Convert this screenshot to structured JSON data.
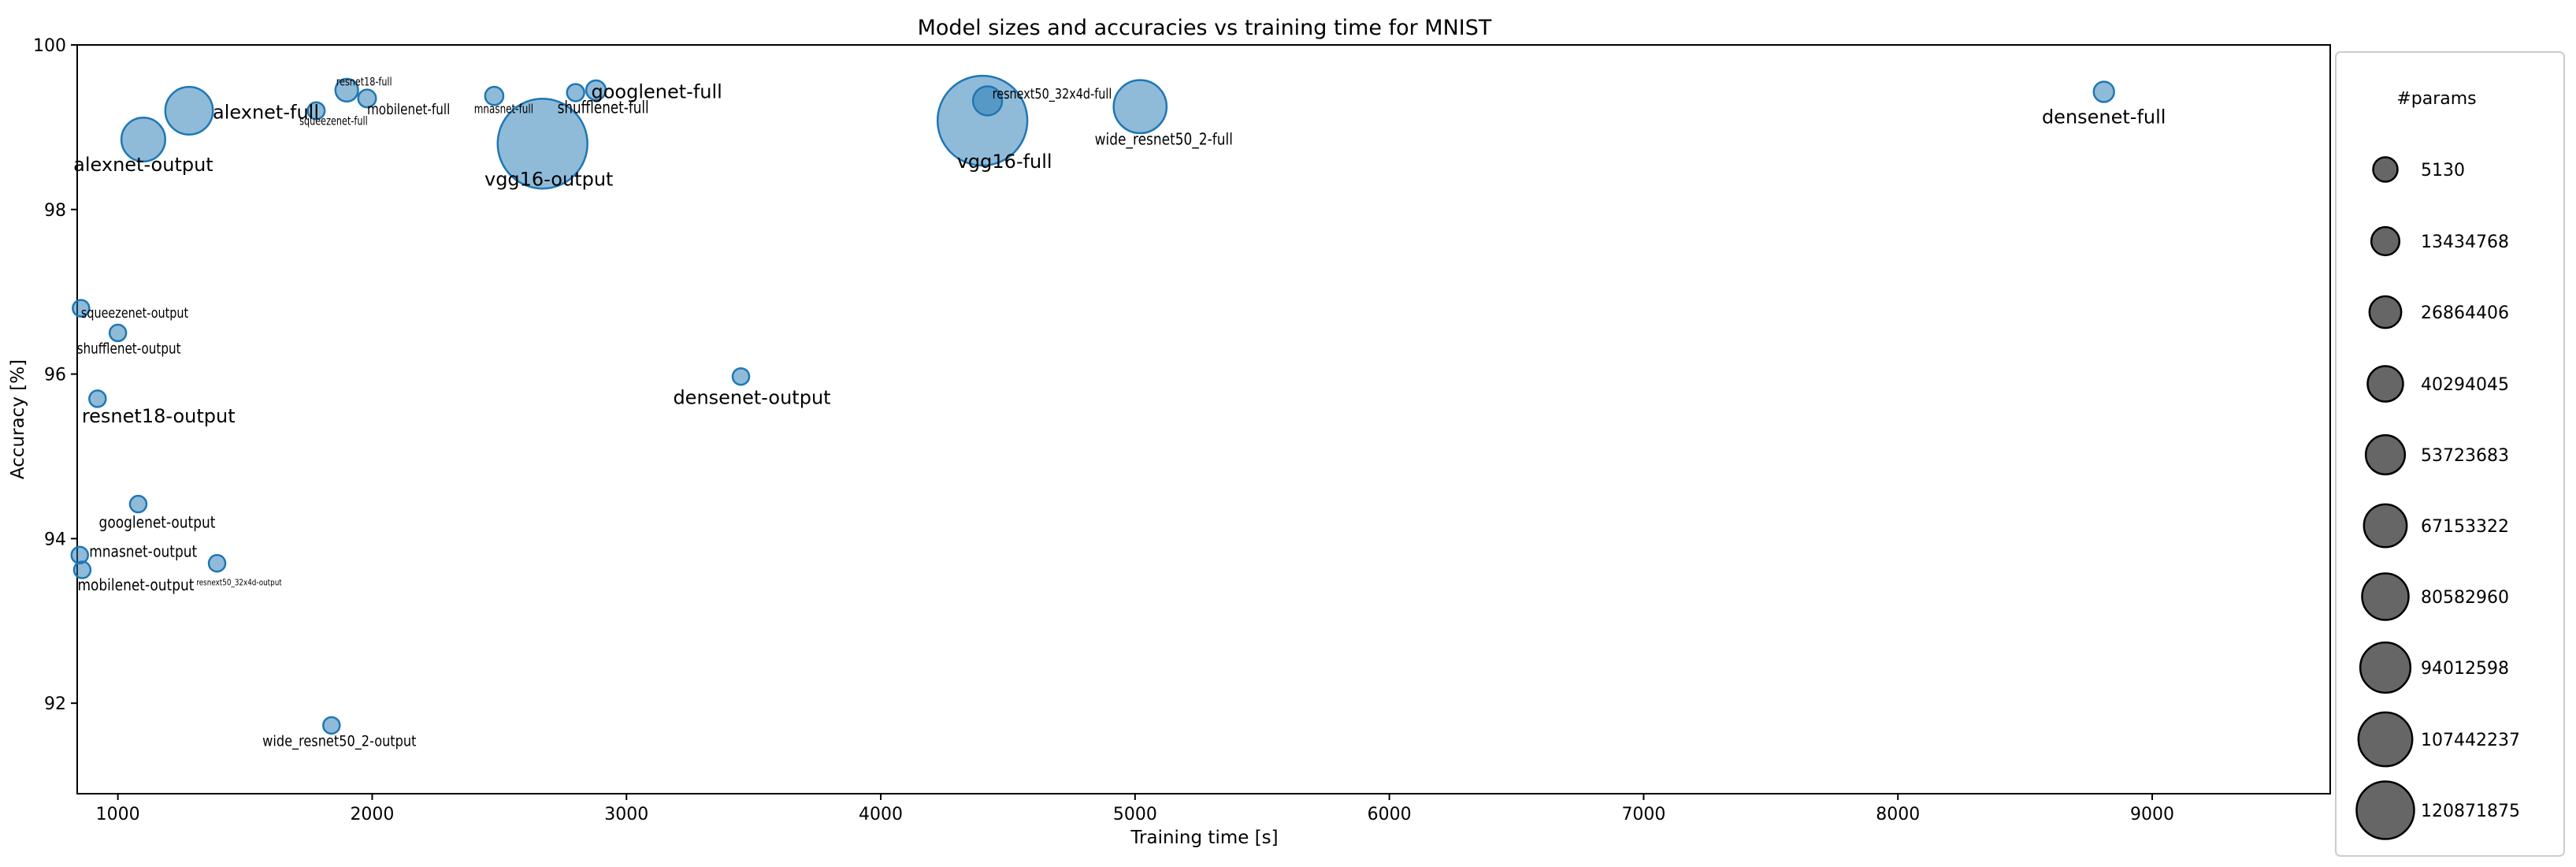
{
  "chart_data": {
    "type": "scatter",
    "title": "Model sizes and accuracies vs training time for MNIST",
    "xlabel": "Training time [s]",
    "ylabel": "Accuracy [%]",
    "xlim": [
      840,
      9700
    ],
    "ylim": [
      90.9,
      100
    ],
    "xticks": [
      1000,
      2000,
      3000,
      4000,
      5000,
      6000,
      7000,
      8000,
      9000
    ],
    "yticks": [
      92,
      94,
      96,
      98,
      100
    ],
    "grid": false,
    "point_color": "#1f77b4",
    "legend_color": "#404040",
    "legend": {
      "title": "#params",
      "placement": "right",
      "entries": [
        "5130",
        "13434768",
        "26864406",
        "40294045",
        "53723683",
        "67153322",
        "80582960",
        "94012598",
        "107442237",
        "120871875"
      ]
    },
    "points": [
      {
        "label": "alexnet-full",
        "x": 1280,
        "y": 99.2,
        "params": 57000000
      },
      {
        "label": "alexnet-output",
        "x": 1100,
        "y": 98.85,
        "params": 50000000
      },
      {
        "label": "resnet18-full",
        "x": 1900,
        "y": 99.45,
        "params": 11200000
      },
      {
        "label": "squeezenet-full",
        "x": 1780,
        "y": 99.2,
        "params": 730000
      },
      {
        "label": "mobilenet-full",
        "x": 1980,
        "y": 99.35,
        "params": 2200000
      },
      {
        "label": "mnasnet-full",
        "x": 2480,
        "y": 99.38,
        "params": 3100000
      },
      {
        "label": "shufflenet-full",
        "x": 2800,
        "y": 99.42,
        "params": 1250000
      },
      {
        "label": "googlenet-full",
        "x": 2880,
        "y": 99.45,
        "params": 5600000
      },
      {
        "label": "vgg16-output",
        "x": 2670,
        "y": 98.8,
        "params": 134300000
      },
      {
        "label": "resnext50_32x4d-full",
        "x": 4420,
        "y": 99.32,
        "params": 23000000
      },
      {
        "label": "vgg16-full",
        "x": 4400,
        "y": 99.08,
        "params": 134300000
      },
      {
        "label": "wide_resnet50_2-full",
        "x": 5020,
        "y": 99.25,
        "params": 66800000
      },
      {
        "label": "densenet-full",
        "x": 8810,
        "y": 99.43,
        "params": 7000000
      },
      {
        "label": "squeezenet-output",
        "x": 855,
        "y": 96.8,
        "params": 5130
      },
      {
        "label": "shufflenet-output",
        "x": 1000,
        "y": 96.5,
        "params": 5130
      },
      {
        "label": "resnet18-output",
        "x": 920,
        "y": 95.7,
        "params": 5130
      },
      {
        "label": "densenet-output",
        "x": 3450,
        "y": 95.97,
        "params": 10250
      },
      {
        "label": "googlenet-output",
        "x": 1080,
        "y": 94.42,
        "params": 10250
      },
      {
        "label": "mnasnet-output",
        "x": 850,
        "y": 93.8,
        "params": 12810
      },
      {
        "label": "mobilenet-output",
        "x": 860,
        "y": 93.62,
        "params": 12810
      },
      {
        "label": "resnext50_32x4d-output",
        "x": 1390,
        "y": 93.7,
        "params": 20490
      },
      {
        "label": "wide_resnet50_2-output",
        "x": 1840,
        "y": 91.73,
        "params": 20490
      }
    ]
  }
}
